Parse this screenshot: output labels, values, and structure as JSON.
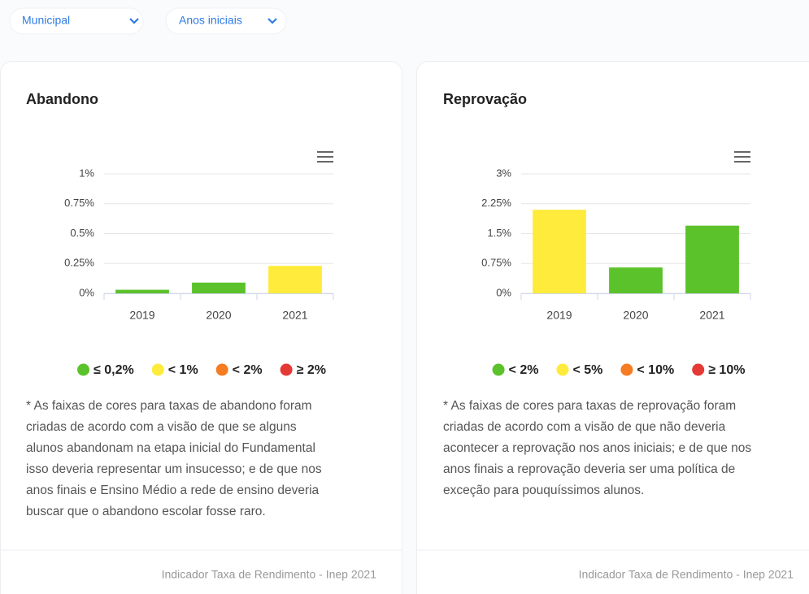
{
  "filters": [
    "Municipal",
    "Anos iniciais"
  ],
  "chart_data": [
    {
      "type": "bar",
      "title": "Abandono",
      "categories": [
        "2019",
        "2020",
        "2021"
      ],
      "values": [
        0.03,
        0.09,
        0.23
      ],
      "colors": [
        "#5cc22b",
        "#5cc22b",
        "#ffeb3b"
      ],
      "ylim": [
        0,
        1
      ],
      "yticks": [
        {
          "value": 0,
          "label": "0%"
        },
        {
          "value": 0.25,
          "label": "0.25%"
        },
        {
          "value": 0.5,
          "label": "0.5%"
        },
        {
          "value": 0.75,
          "label": "0.75%"
        },
        {
          "value": 1,
          "label": "1%"
        }
      ],
      "grid": true,
      "legend": [
        {
          "label": "≤ 0,2%",
          "color": "#5cc22b"
        },
        {
          "label": "< 1%",
          "color": "#ffeb3b"
        },
        {
          "label": "< 2%",
          "color": "#f57c22"
        },
        {
          "label": "≥ 2%",
          "color": "#e53935"
        }
      ],
      "note": [
        "* As faixas de cores para taxas de abandono foram",
        "criadas de acordo com a visão de que se alguns",
        "alunos abandonam na etapa inicial do Fundamental",
        "isso deveria representar um insucesso; e de que nos",
        "anos finais e Ensino Médio a rede de ensino deveria",
        "buscar que o abandono escolar fosse raro."
      ],
      "source": "Indicador Taxa de Rendimento - Inep 2021"
    },
    {
      "type": "bar",
      "title": "Reprovação",
      "categories": [
        "2019",
        "2020",
        "2021"
      ],
      "values": [
        2.1,
        0.65,
        1.7
      ],
      "colors": [
        "#ffeb3b",
        "#5cc22b",
        "#5cc22b"
      ],
      "ylim": [
        0,
        3
      ],
      "yticks": [
        {
          "value": 0,
          "label": "0%"
        },
        {
          "value": 0.75,
          "label": "0.75%"
        },
        {
          "value": 1.5,
          "label": "1.5%"
        },
        {
          "value": 2.25,
          "label": "2.25%"
        },
        {
          "value": 3,
          "label": "3%"
        }
      ],
      "grid": true,
      "legend": [
        {
          "label": "< 2%",
          "color": "#5cc22b"
        },
        {
          "label": "< 5%",
          "color": "#ffeb3b"
        },
        {
          "label": "< 10%",
          "color": "#f57c22"
        },
        {
          "label": "≥ 10%",
          "color": "#e53935"
        }
      ],
      "note": [
        "* As faixas de cores para taxas de reprovação foram",
        "criadas de acordo com a visão de que não deveria",
        "acontecer a reprovação nos anos iniciais; e de que nos",
        "anos finais a reprovação deveria ser uma política de",
        "exceção para pouquíssimos alunos."
      ],
      "source": "Indicador Taxa de Rendimento - Inep 2021"
    }
  ]
}
